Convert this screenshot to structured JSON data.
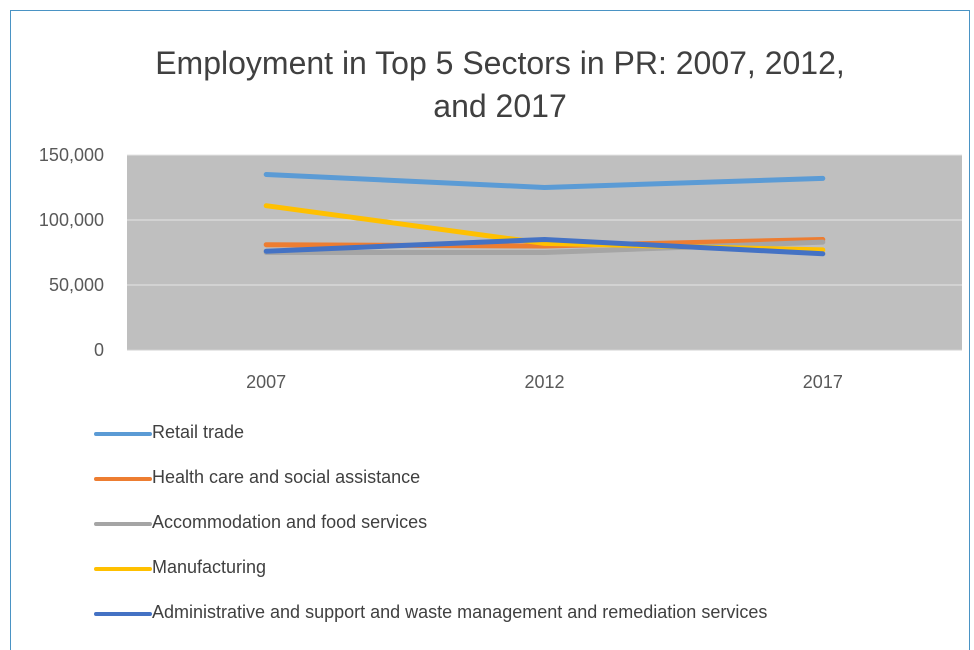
{
  "chart_data": {
    "type": "line",
    "title_lines": [
      "Employment in Top 5 Sectors in PR: 2007, 2012,",
      "and 2017"
    ],
    "categories": [
      "2007",
      "2012",
      "2017"
    ],
    "ylim": [
      0,
      150000
    ],
    "yticks": [
      0,
      50000,
      100000,
      150000
    ],
    "ytick_labels": [
      "0",
      "50,000",
      "100,000",
      "150,000"
    ],
    "grid": true,
    "legend_position": "bottom",
    "plot_background": "#bfbfbf",
    "series": [
      {
        "name": "Retail trade",
        "color": "#5b9bd5",
        "values": [
          135000,
          125000,
          132000
        ]
      },
      {
        "name": "Health care and social assistance",
        "color": "#ed7d31",
        "values": [
          81000,
          80000,
          85000
        ]
      },
      {
        "name": "Accommodation and food services",
        "color": "#a5a5a5",
        "values": [
          75000,
          75000,
          83000
        ]
      },
      {
        "name": "Manufacturing",
        "color": "#ffc000",
        "values": [
          111000,
          82000,
          77000
        ]
      },
      {
        "name": "Administrative and support and waste management and remediation services",
        "color": "#4472c4",
        "values": [
          76000,
          85000,
          74000
        ]
      }
    ]
  }
}
